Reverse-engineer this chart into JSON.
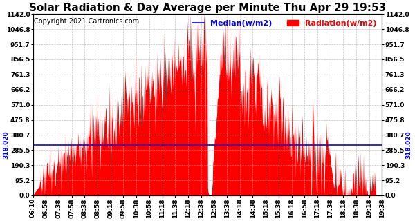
{
  "title": "Solar Radiation & Day Average per Minute Thu Apr 29 19:53",
  "copyright": "Copyright 2021 Cartronics.com",
  "median_label": "Median(w/m2)",
  "radiation_label": "Radiation(w/m2)",
  "median_value": 318.02,
  "ymin": 0.0,
  "ymax": 1142.0,
  "yticks": [
    0.0,
    95.2,
    190.3,
    285.5,
    380.7,
    475.8,
    571.0,
    666.2,
    761.3,
    856.5,
    951.7,
    1046.8,
    1142.0
  ],
  "ytick_labels": [
    "0.0",
    "95.2",
    "190.3",
    "285.5",
    "380.7",
    "475.8",
    "571.0",
    "666.2",
    "761.3",
    "856.5",
    "951.7",
    "1046.8",
    "1142.0"
  ],
  "bar_color": "#FF0000",
  "median_color": "#0000FF",
  "background_color": "#FFFFFF",
  "grid_color": "#AAAAAA",
  "title_fontsize": 11,
  "copyright_fontsize": 7,
  "legend_fontsize": 8,
  "tick_fontsize": 6.5,
  "xtick_labels": [
    "06:10",
    "06:58",
    "07:38",
    "07:58",
    "08:38",
    "08:58",
    "09:18",
    "09:58",
    "10:38",
    "10:58",
    "11:18",
    "11:38",
    "12:18",
    "12:38",
    "12:58",
    "13:38",
    "14:18",
    "14:38",
    "15:18",
    "15:38",
    "16:18",
    "16:58",
    "17:18",
    "17:38",
    "18:18",
    "18:38",
    "19:18",
    "19:38"
  ]
}
